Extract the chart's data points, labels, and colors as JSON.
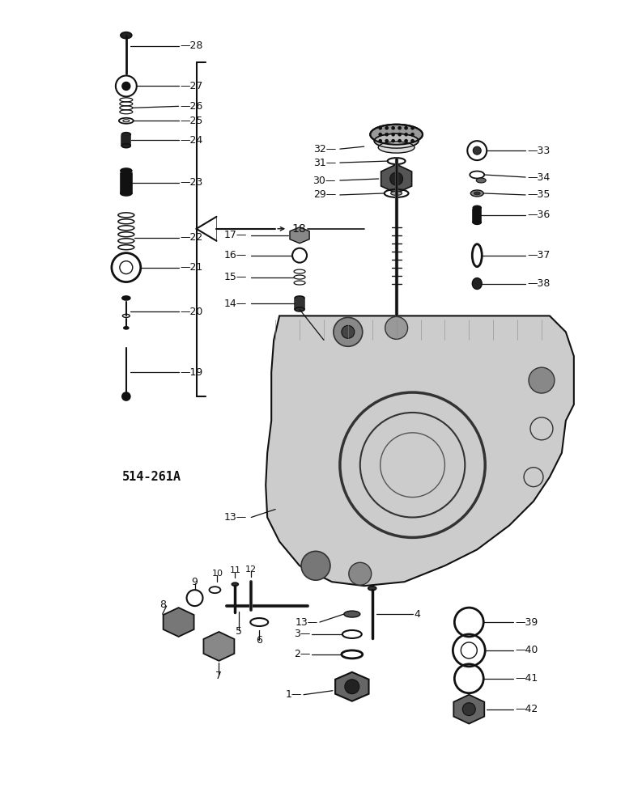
{
  "fig_label": "514-261A",
  "background_color": "#ffffff",
  "ink_color": "#111111",
  "figsize": [
    7.72,
    10.0
  ],
  "dpi": 100,
  "xlim": [
    0,
    772
  ],
  "ylim": [
    0,
    1000
  ]
}
